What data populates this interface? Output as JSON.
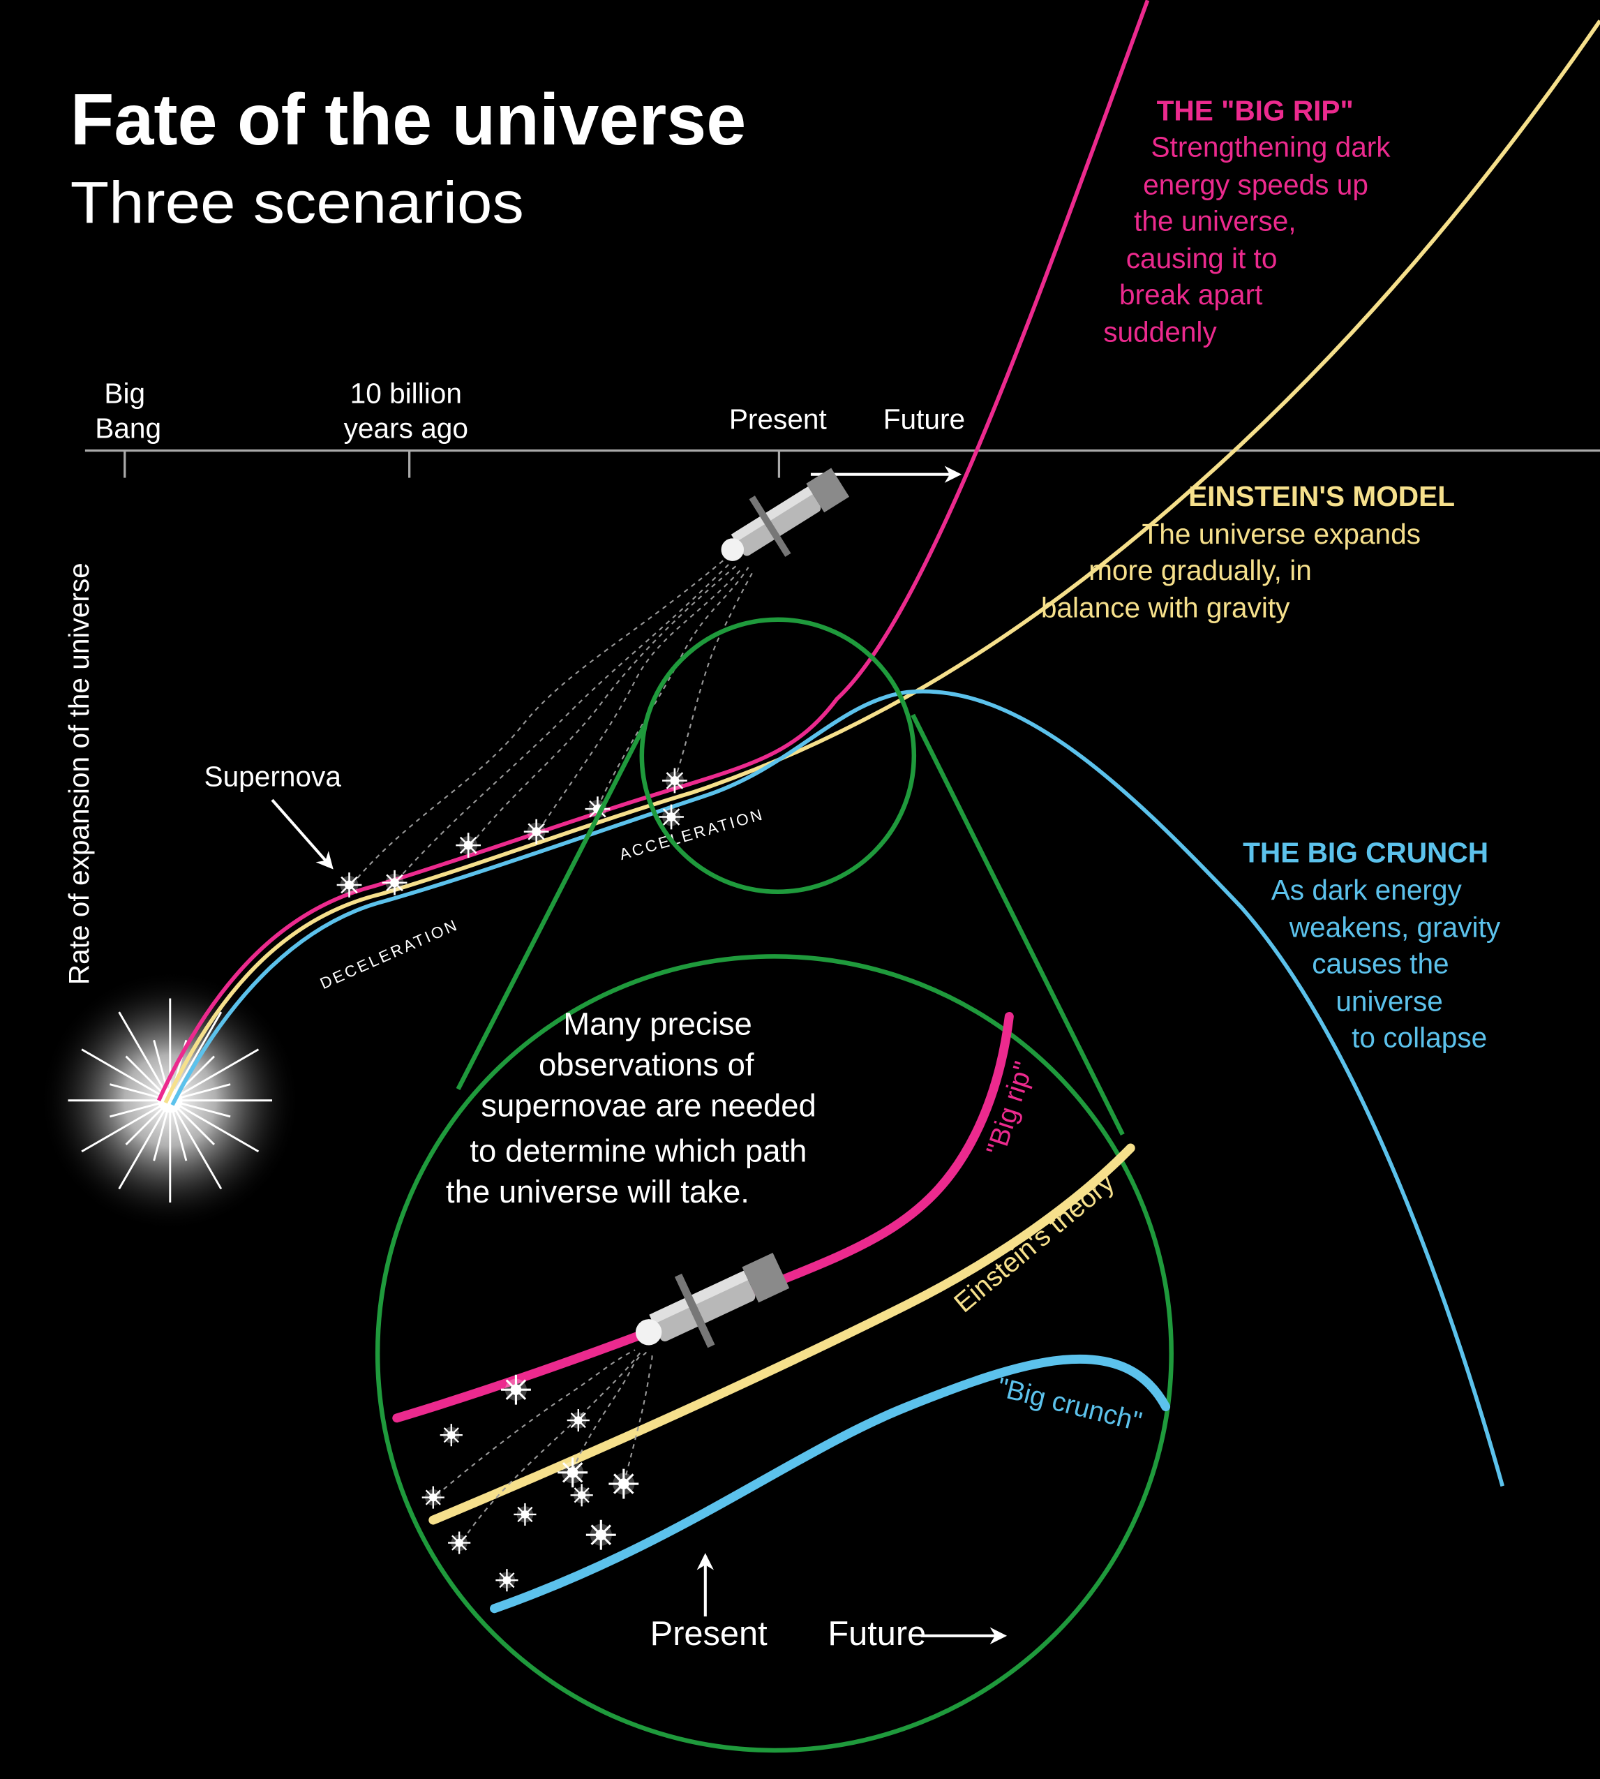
{
  "header": {
    "title": "Fate of the universe",
    "subtitle": "Three scenarios"
  },
  "timeline": {
    "big_bang": [
      "Big",
      "Bang"
    ],
    "ten_billion": [
      "10 billion",
      "years ago"
    ],
    "present": "Present",
    "future": "Future"
  },
  "y_axis_label": "Rate of expansion of the universe",
  "labels": {
    "supernova": "Supernova",
    "deceleration": "DECELERATION",
    "acceleration": "ACCELERATION"
  },
  "scenarios": [
    {
      "title": "THE \"BIG RIP\"",
      "lines": [
        "Strengthening dark",
        "energy speeds up",
        "the universe,",
        "causing it to",
        "break apart",
        "suddenly"
      ]
    },
    {
      "title": "EINSTEIN'S MODEL",
      "lines": [
        "The universe expands",
        "more gradually, in",
        "balance with gravity"
      ]
    },
    {
      "title": "THE BIG CRUNCH",
      "lines": [
        "As dark energy",
        "weakens, gravity",
        "causes the",
        "universe",
        "to collapse"
      ]
    }
  ],
  "inset": {
    "note": [
      "Many precise",
      "observations of",
      "supernovae are needed",
      "to determine which path",
      "the universe will take."
    ],
    "big_rip": "\"Big rip\"",
    "einstein": "Einstein's theory",
    "big_crunch": "\"Big crunch\"",
    "present": "Present",
    "future": "Future"
  }
}
